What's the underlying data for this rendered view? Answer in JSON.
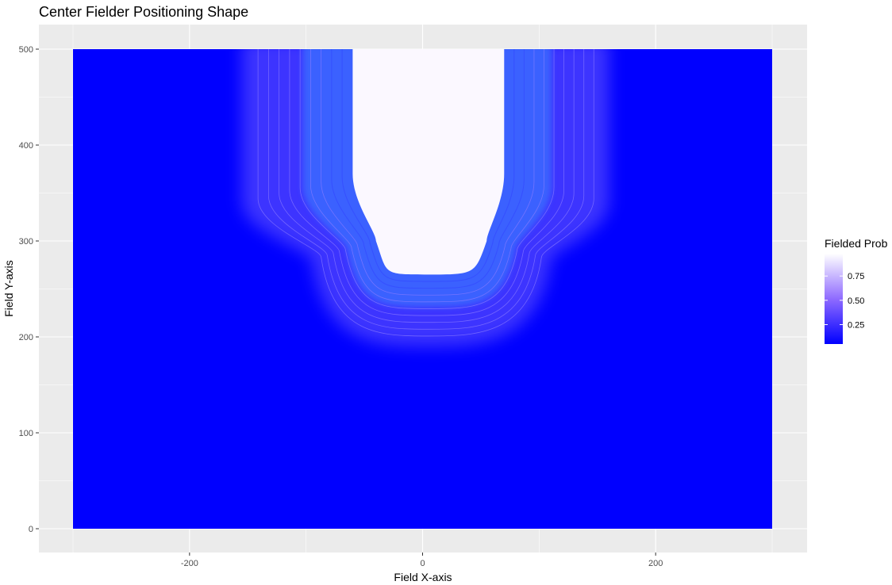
{
  "chart_data": {
    "type": "heatmap",
    "title": "Center Fielder Positioning Shape",
    "xlabel": "Field X-axis",
    "ylabel": "Field Y-axis",
    "xlim": [
      -300,
      300
    ],
    "ylim": [
      0,
      500
    ],
    "x_ticks": [
      -200,
      0,
      200
    ],
    "y_ticks": [
      0,
      100,
      200,
      300,
      400,
      500
    ],
    "grid": true,
    "background_color": "#ebebeb",
    "gridline_color": "#ffffff",
    "legend": {
      "title": "Fielded Prob",
      "placement": "right",
      "ticks": [
        0.25,
        0.5,
        0.75
      ],
      "tick_labels": [
        "0.25",
        "0.50",
        "0.75"
      ],
      "range": [
        0.05,
        0.98
      ],
      "low_color": "#0000ff",
      "high_color": "#ffffff"
    },
    "high_probability_region": {
      "description_values": "probability 1.0 inside U-shaped band centered near x=5, bottom at y≈265, top walls x≈-60 to x≈70 extending to y=500",
      "center_x": 5,
      "bottom_y": 265,
      "outer_falloff_bottom_y": 190,
      "left_wall_x_inner": -60,
      "right_wall_x_inner": 70,
      "left_wall_x_outer": -155,
      "right_wall_x_outer": 160
    },
    "contour_levels": [
      0.1,
      0.2,
      0.3,
      0.4,
      0.5,
      0.6,
      0.7,
      0.8,
      0.9
    ]
  }
}
